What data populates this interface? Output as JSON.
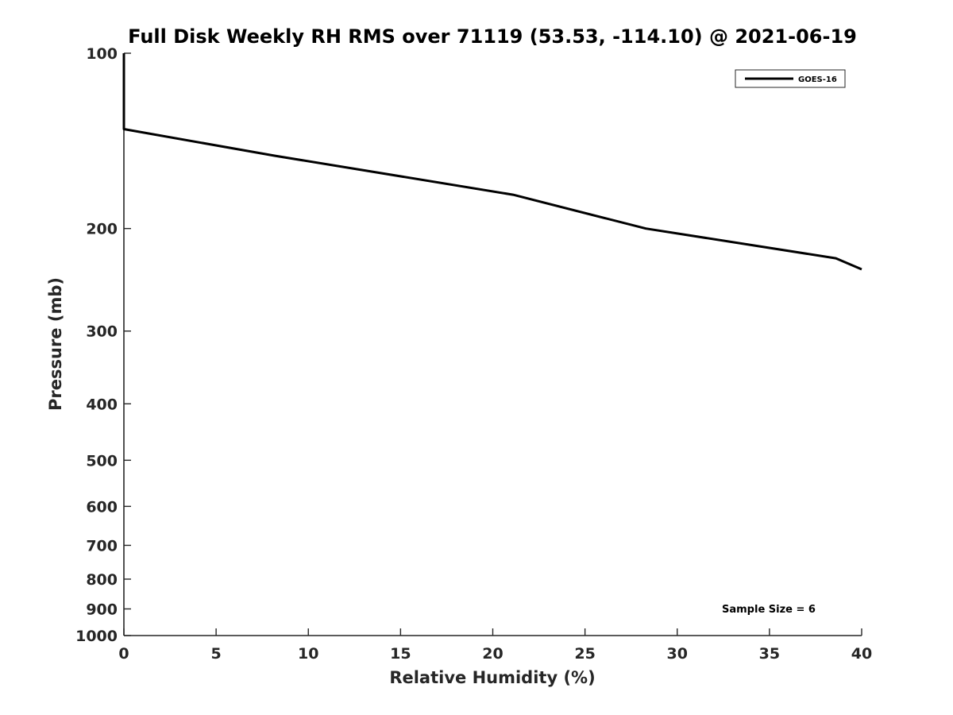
{
  "chart_data": {
    "type": "line",
    "title": "Full Disk Weekly RH RMS over 71119 (53.53, -114.10) @ 2021-06-19",
    "xlabel": "Relative Humidity (%)",
    "ylabel": "Pressure (mb)",
    "xlim": [
      0,
      40
    ],
    "ylim": [
      100,
      1000
    ],
    "yscale": "log",
    "y_reversed": true,
    "grid": false,
    "x_ticks": [
      0,
      5,
      10,
      15,
      20,
      25,
      30,
      35,
      40
    ],
    "x_tick_labels": [
      "0",
      "5",
      "10",
      "15",
      "20",
      "25",
      "30",
      "35",
      "40"
    ],
    "y_ticks": [
      100,
      200,
      300,
      400,
      500,
      600,
      700,
      800,
      900,
      1000
    ],
    "y_tick_labels": [
      "100",
      "200",
      "300",
      "400",
      "500",
      "600",
      "700",
      "800",
      "900",
      "1000"
    ],
    "series": [
      {
        "name": "GOES-16",
        "color": "#000000",
        "points": [
          {
            "x": 0.0,
            "y": 100
          },
          {
            "x": 0.0,
            "y": 125
          },
          {
            "x": 0.0,
            "y": 135
          },
          {
            "x": 8.2,
            "y": 150
          },
          {
            "x": 21.1,
            "y": 175
          },
          {
            "x": 28.3,
            "y": 200
          },
          {
            "x": 38.6,
            "y": 225
          },
          {
            "x": 40.0,
            "y": 235
          }
        ]
      }
    ],
    "legend": {
      "position": "top-right",
      "entries": [
        "GOES-16"
      ]
    },
    "annotations": {
      "sample_size": "Sample Size = 6"
    }
  }
}
